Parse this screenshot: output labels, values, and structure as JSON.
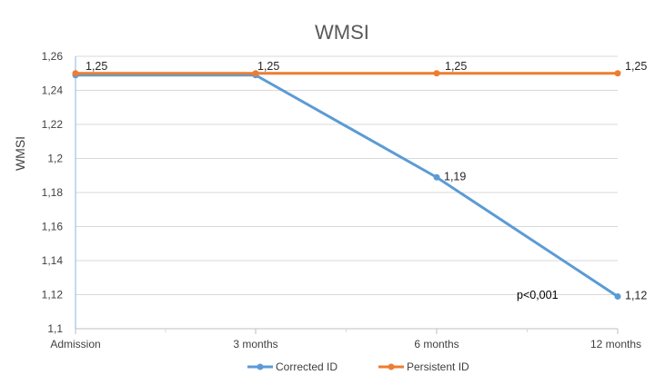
{
  "chart_data": {
    "type": "line",
    "title": "WMSI",
    "xlabel": "",
    "ylabel": "WMSI",
    "categories": [
      "Admission",
      "3 months",
      "6 months",
      "12 months"
    ],
    "ylim": [
      1.1,
      1.26
    ],
    "yticks": [
      "1,1",
      "1,12",
      "1,14",
      "1,16",
      "1,18",
      "1,2",
      "1,22",
      "1,24",
      "1,26"
    ],
    "grid": true,
    "legend_position": "bottom",
    "series": [
      {
        "name": "Corrected ID",
        "values": [
          1.25,
          1.25,
          1.19,
          1.12
        ],
        "labels": [
          "1,25",
          "1,25",
          "1,19",
          "1,12"
        ],
        "color": "#5B9BD5",
        "show_labels": [
          false,
          false,
          true,
          true
        ]
      },
      {
        "name": "Persistent ID",
        "values": [
          1.25,
          1.25,
          1.25,
          1.25
        ],
        "labels": [
          "1,25",
          "1,25",
          "1,25",
          "1,25"
        ],
        "color": "#ED7D31",
        "show_labels": [
          true,
          true,
          true,
          true
        ]
      }
    ],
    "annotations": [
      "p<0,001"
    ]
  }
}
